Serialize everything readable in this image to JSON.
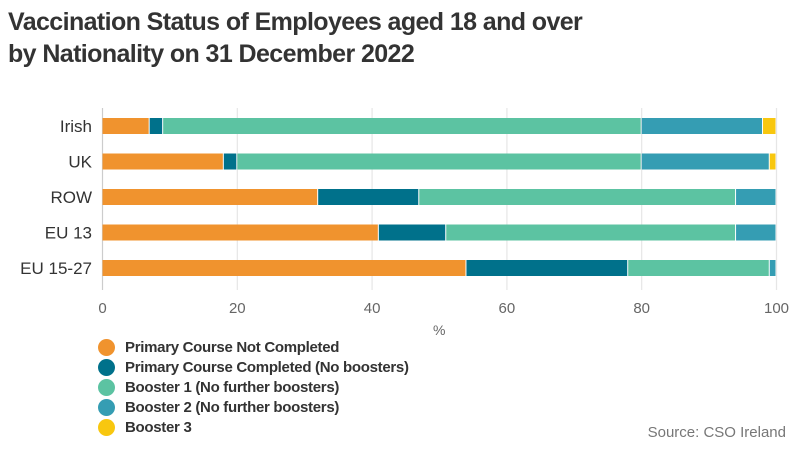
{
  "chart_data": {
    "type": "bar",
    "orientation": "horizontal",
    "stacked": true,
    "title": "Vaccination Status of Employees aged 18 and over by Nationality on 31 December 2022",
    "title_lines": [
      "Vaccination Status of Employees aged 18 and over",
      "by Nationality on 31 December 2022"
    ],
    "xlabel": "%",
    "ylabel": "",
    "xlim": [
      0,
      100
    ],
    "xticks": [
      0,
      20,
      40,
      60,
      80,
      100
    ],
    "grid": true,
    "legend_position": "bottom-left",
    "categories": [
      "Irish",
      "UK",
      "ROW",
      "EU 13",
      "EU 15-27"
    ],
    "series": [
      {
        "name": "Primary Course Not Completed",
        "color": "#F0932E",
        "values": [
          7,
          18,
          32,
          41,
          54
        ]
      },
      {
        "name": "Primary Course Completed (No boosters)",
        "color": "#00718B",
        "values": [
          2,
          2,
          15,
          10,
          24
        ]
      },
      {
        "name": "Booster 1 (No further boosters)",
        "color": "#5CC3A2",
        "values": [
          71,
          60,
          47,
          43,
          21
        ]
      },
      {
        "name": "Booster 2 (No further boosters)",
        "color": "#359DB3",
        "values": [
          18,
          19,
          6,
          6,
          1
        ]
      },
      {
        "name": "Booster 3",
        "color": "#F8C70F",
        "values": [
          2,
          1,
          0,
          0,
          0
        ]
      }
    ],
    "source": "Source: CSO Ireland"
  }
}
